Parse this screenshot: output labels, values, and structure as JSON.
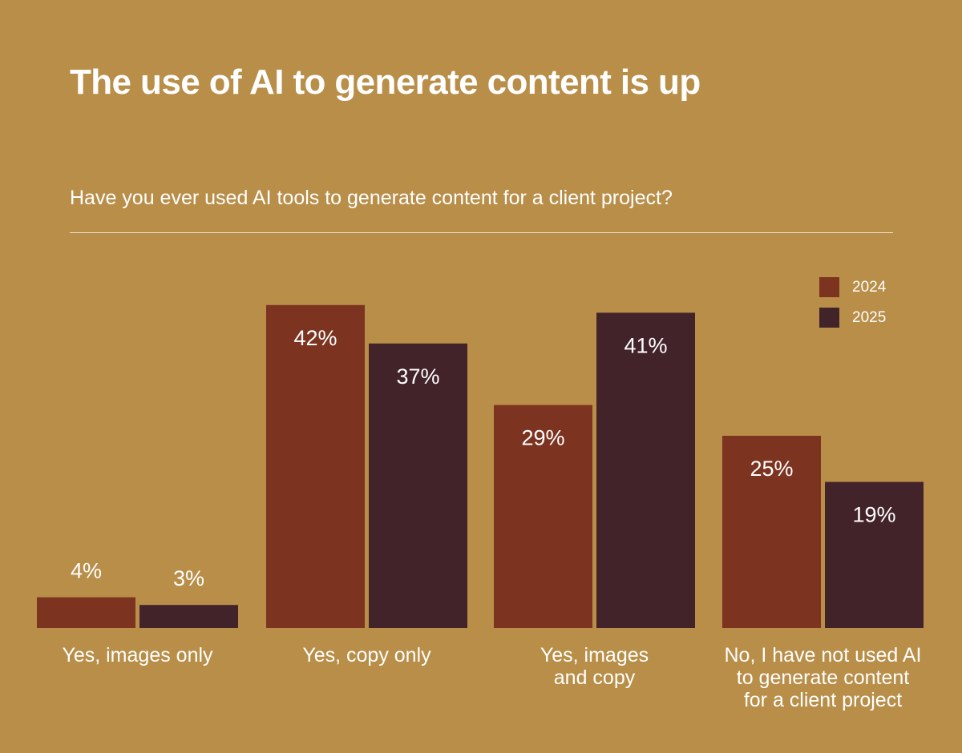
{
  "title": "The use of AI to generate content is up",
  "question": "Have you ever used AI tools to generate content for a client project?",
  "colors": {
    "background": "#B88E48",
    "series_2024": "#7C3320",
    "series_2025": "#43232A"
  },
  "legend": [
    {
      "label": "2024",
      "color": "#7C3320"
    },
    {
      "label": "2025",
      "color": "#43232A"
    }
  ],
  "chart_data": {
    "type": "bar",
    "categories": [
      [
        "Yes, images only"
      ],
      [
        "Yes, copy only"
      ],
      [
        "Yes, images",
        "and copy"
      ],
      [
        "No, I have not used AI",
        "to generate content",
        "for a client project"
      ]
    ],
    "series": [
      {
        "name": "2024",
        "values": [
          4,
          42,
          29,
          25
        ],
        "labels": [
          "4%",
          "42%",
          "29%",
          "25%"
        ]
      },
      {
        "name": "2025",
        "values": [
          3,
          37,
          41,
          19
        ],
        "labels": [
          "3%",
          "37%",
          "41%",
          "19%"
        ]
      }
    ],
    "legend_position": "top-right",
    "grid": false
  }
}
